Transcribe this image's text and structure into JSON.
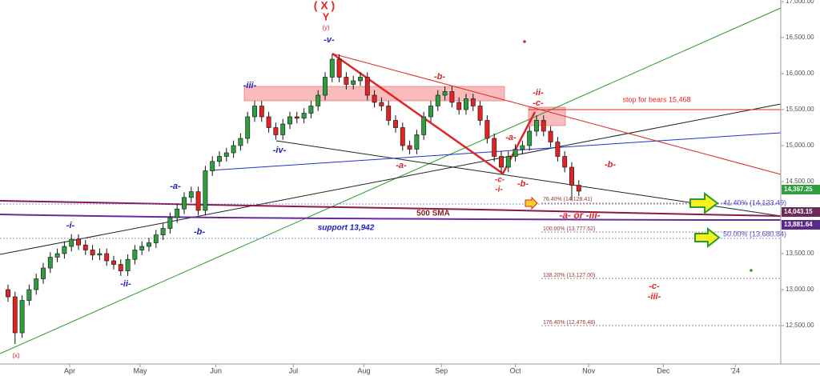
{
  "chart_data": {
    "type": "candlestick",
    "open": [
      13000,
      12900,
      12400,
      12850,
      13000,
      13150,
      13300,
      13450,
      13500,
      13600,
      13700,
      13620,
      13550,
      13480,
      13500,
      13400,
      13350,
      13260,
      13420,
      13550,
      13600,
      13650,
      13760,
      13850,
      14000,
      14120,
      14280,
      14360,
      14100,
      14650,
      14780,
      14850,
      14900,
      15000,
      15100,
      15400,
      15550,
      15400,
      15250,
      15150,
      15300,
      15400,
      15380,
      15450,
      15550,
      15700,
      15950,
      16200,
      15950,
      15850,
      15900,
      15950,
      15700,
      15600,
      15550,
      15350,
      15250,
      15000,
      14950,
      15150,
      15400,
      15550,
      15700,
      15750,
      15600,
      15500,
      15650,
      15550,
      15350,
      15100,
      14850,
      14700,
      14850,
      14950,
      15000,
      15200,
      15350,
      15200,
      15050,
      14850,
      14700,
      14450
    ],
    "high": [
      13070,
      12970,
      12920,
      13070,
      13220,
      13370,
      13520,
      13570,
      13670,
      13770,
      13770,
      13690,
      13620,
      13570,
      13570,
      13470,
      13420,
      13490,
      13620,
      13670,
      13720,
      13830,
      13920,
      14070,
      14190,
      14350,
      14430,
      14430,
      14720,
      14850,
      14920,
      14970,
      15070,
      15170,
      15470,
      15620,
      15620,
      15470,
      15320,
      15370,
      15470,
      15470,
      15520,
      15620,
      15770,
      16020,
      16270,
      16270,
      16020,
      15970,
      16020,
      16020,
      15770,
      15670,
      15620,
      15420,
      15320,
      15070,
      15220,
      15470,
      15620,
      15770,
      15820,
      15820,
      15670,
      15720,
      15720,
      15620,
      15420,
      15170,
      14920,
      14920,
      15020,
      15070,
      15270,
      15420,
      15420,
      15270,
      15120,
      14920,
      14770,
      14520
    ],
    "low": [
      12830,
      12245,
      12330,
      12780,
      12930,
      13080,
      13230,
      13380,
      13430,
      13530,
      13550,
      13480,
      13410,
      13410,
      13330,
      13280,
      13190,
      13190,
      13350,
      13480,
      13530,
      13580,
      13690,
      13780,
      13930,
      14050,
      14210,
      14030,
      14030,
      14580,
      14710,
      14780,
      14830,
      14930,
      15030,
      15330,
      15330,
      15180,
      15080,
      15080,
      15230,
      15310,
      15310,
      15380,
      15480,
      15630,
      15880,
      15880,
      15780,
      15780,
      15830,
      15630,
      15530,
      15480,
      15280,
      15180,
      14930,
      14880,
      14880,
      15080,
      15330,
      15480,
      15630,
      15530,
      15430,
      15430,
      15480,
      15280,
      15030,
      14780,
      14630,
      14630,
      14780,
      14880,
      14930,
      15130,
      15130,
      14980,
      14780,
      14630,
      14240,
      14300
    ],
    "close": [
      12900,
      12400,
      12850,
      13000,
      13150,
      13300,
      13450,
      13500,
      13600,
      13700,
      13620,
      13550,
      13480,
      13500,
      13400,
      13350,
      13260,
      13420,
      13550,
      13600,
      13650,
      13760,
      13850,
      14000,
      14120,
      14280,
      14360,
      14100,
      14650,
      14780,
      14850,
      14900,
      15000,
      15100,
      15400,
      15550,
      15400,
      15250,
      15150,
      15300,
      15400,
      15380,
      15450,
      15550,
      15700,
      15950,
      16200,
      15950,
      15850,
      15900,
      15950,
      15700,
      15600,
      15550,
      15350,
      15250,
      15000,
      14950,
      15150,
      15400,
      15550,
      15700,
      15750,
      15600,
      15500,
      15650,
      15550,
      15350,
      15100,
      14850,
      14700,
      14850,
      14950,
      15000,
      15200,
      15350,
      15200,
      15050,
      14850,
      14700,
      14450,
      14367.25
    ],
    "up_color": "#2e9e3e",
    "down_color": "#e02424",
    "xlim": [
      -1.136,
      109.66
    ],
    "xticks": [
      {
        "value": 8.75,
        "label": "Apr"
      },
      {
        "value": 18.75,
        "label": "May"
      },
      {
        "value": 29.5,
        "label": "Jun"
      },
      {
        "value": 40.5,
        "label": "Jul"
      },
      {
        "value": 50.5,
        "label": "Aug"
      },
      {
        "value": 61.5,
        "label": "Sep"
      },
      {
        "value": 72,
        "label": "Oct"
      },
      {
        "value": 82.4,
        "label": "Nov"
      },
      {
        "value": 93,
        "label": "Dec"
      },
      {
        "value": 103.2,
        "label": "'24"
      }
    ],
    "ylim": [
      11967,
      17022
    ],
    "yticks": [
      {
        "value": 12500,
        "label": "12,500.00"
      },
      {
        "value": 13000,
        "label": "13,000.00"
      },
      {
        "value": 13500,
        "label": "13,500.00"
      },
      {
        "value": 14500,
        "label": "14,500.00"
      },
      {
        "value": 15000,
        "label": "15,000.00"
      },
      {
        "value": 15500,
        "label": "15,500.00"
      },
      {
        "value": 16000,
        "label": "16,000.00"
      },
      {
        "value": 16500,
        "label": "16,500.00"
      },
      {
        "value": 17000,
        "label": "17,000.00"
      }
    ],
    "price_labels": [
      "14,367.25",
      "14,043.15",
      "13,881.64"
    ],
    "annotations": [
      "( X )",
      "Y",
      "(y)",
      "-v-",
      "-iii-",
      "-iv-",
      "-i-",
      "-ii-",
      "-a-",
      "-b-",
      "(x)",
      "-b-",
      "-a-",
      "-ii-",
      "-c-",
      "-a-",
      "-c-",
      "-i-",
      "-b-",
      "-b-",
      "-a- or -iii-",
      "-c-",
      "-iii-",
      "stop for bears 15,468",
      "500 SMA",
      "support 13,942",
      "76.40% (14,128.41)",
      "41.40% (14,123.49)",
      "100.00% (13,777.52)",
      "50.00% (13,680.84)",
      "138.20% (13,127.00)",
      "176.40% (12,476.48)"
    ]
  }
}
